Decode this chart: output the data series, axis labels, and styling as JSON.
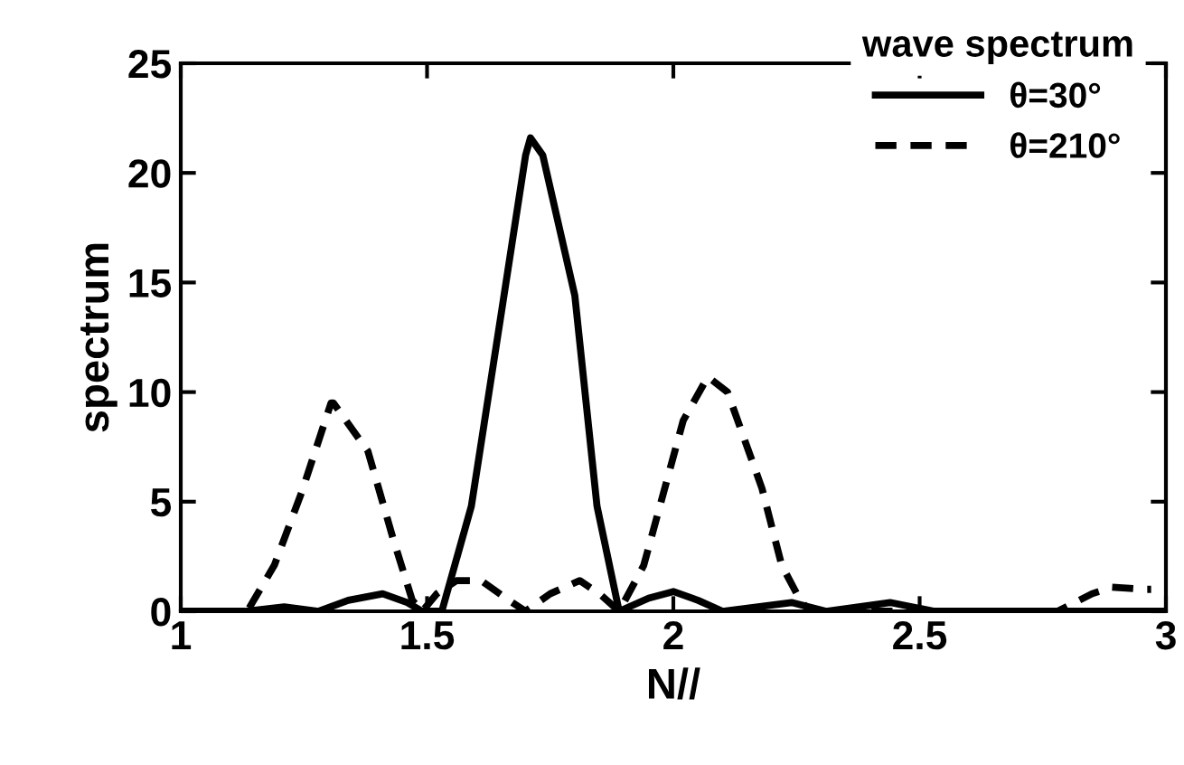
{
  "chart_data": {
    "type": "line",
    "xlabel": "N//",
    "ylabel": "spectrum",
    "legend_title": "wave spectrum",
    "legend": "top right",
    "xlim": [
      1,
      3
    ],
    "xticks": [
      1,
      1.5,
      2,
      2.5,
      3
    ],
    "ylim": [
      0,
      25
    ],
    "yticks": [
      0,
      5,
      10,
      15,
      20,
      25
    ],
    "grid": false,
    "series": [
      {
        "name": "θ=30°",
        "color": "#000000",
        "line_style": "solid",
        "x": [
          1.0,
          1.13,
          1.21,
          1.28,
          1.34,
          1.41,
          1.46,
          1.49,
          1.53,
          1.59,
          1.65,
          1.7,
          1.71,
          1.735,
          1.8,
          1.845,
          1.89,
          1.95,
          2.0,
          2.05,
          2.1,
          2.24,
          2.31,
          2.44,
          2.53,
          3.0
        ],
        "values": [
          0,
          0,
          0.2,
          0,
          0.5,
          0.8,
          0.4,
          0,
          0,
          4.8,
          13.5,
          20.8,
          21.6,
          20.8,
          14.4,
          4.8,
          0,
          0.6,
          0.9,
          0.5,
          0,
          0.4,
          0,
          0.4,
          0,
          0
        ]
      },
      {
        "name": "θ=210°",
        "color": "#000000",
        "line_style": "dashed",
        "x": [
          1.0,
          1.135,
          1.19,
          1.245,
          1.305,
          1.31,
          1.38,
          1.43,
          1.47,
          1.49,
          1.52,
          1.56,
          1.61,
          1.66,
          1.7,
          1.75,
          1.81,
          1.85,
          1.89,
          1.94,
          2.02,
          2.07,
          2.11,
          2.18,
          2.22,
          2.26,
          2.28,
          2.78,
          2.85,
          2.89,
          2.96,
          2.97
        ],
        "values": [
          0,
          0,
          2.1,
          5.4,
          9.5,
          9.5,
          7.3,
          3.4,
          0.5,
          0,
          0.8,
          1.4,
          1.4,
          0.6,
          0,
          0.8,
          1.4,
          0.8,
          0,
          2.1,
          8.7,
          10.7,
          10.0,
          5.6,
          2.1,
          0.4,
          0,
          0,
          0.8,
          1.1,
          1.0,
          1.0
        ]
      }
    ]
  }
}
